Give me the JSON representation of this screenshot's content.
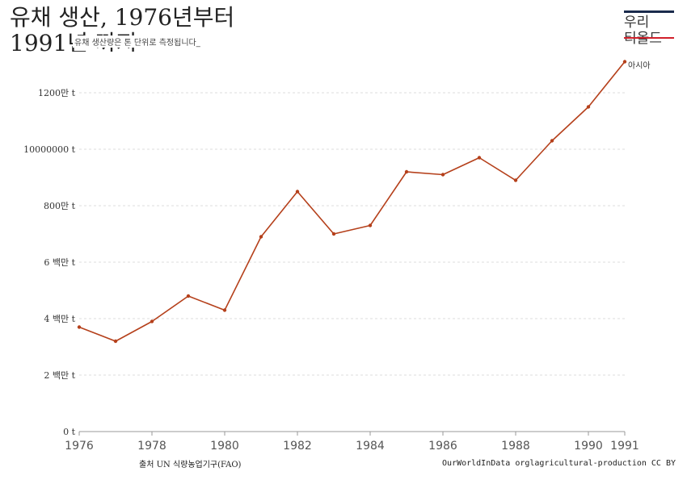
{
  "header": {
    "title": "유채 생산, 1976년부터",
    "title_cont": "1991년 까지",
    "subtitle": "유채 생산량은 톤 단위로 측정됩니다_"
  },
  "logo": {
    "text": "우리\n티올드",
    "bar_color": "#1a2b4c",
    "line_color": "#d11f2a"
  },
  "footer": {
    "source": "출처 UN 식량농업기구(FAO)",
    "attribution": "OurWorldInData orglagricultural-production CC BY"
  },
  "chart_data": {
    "type": "line",
    "x": [
      1976,
      1977,
      1978,
      1979,
      1980,
      1981,
      1982,
      1983,
      1984,
      1985,
      1986,
      1987,
      1988,
      1989,
      1990,
      1991
    ],
    "series": [
      {
        "name": "아시아",
        "color": "#b5401b",
        "values": [
          3700000,
          3200000,
          3900000,
          4800000,
          4300000,
          6900000,
          8500000,
          7000000,
          7300000,
          9200000,
          9100000,
          9700000,
          8900000,
          10300000,
          11500000,
          13100000
        ]
      }
    ],
    "xlim": [
      1976,
      1991
    ],
    "ylim": [
      0,
      12000000
    ],
    "x_ticks": [
      {
        "value": 1976,
        "label": "1976"
      },
      {
        "value": 1978,
        "label": "1978"
      },
      {
        "value": 1980,
        "label": "1980"
      },
      {
        "value": 1982,
        "label": "1982"
      },
      {
        "value": 1984,
        "label": "1984"
      },
      {
        "value": 1986,
        "label": "1986"
      },
      {
        "value": 1988,
        "label": "1988"
      },
      {
        "value": 1990,
        "label": "1990"
      },
      {
        "value": 1991,
        "label": "1991"
      }
    ],
    "y_ticks": [
      {
        "value": 0,
        "label": "0 t"
      },
      {
        "value": 2000000,
        "label": "2 백만 t"
      },
      {
        "value": 4000000,
        "label": "4 백만 t"
      },
      {
        "value": 6000000,
        "label": "6 백만 t"
      },
      {
        "value": 8000000,
        "label": "800만 t"
      },
      {
        "value": 10000000,
        "label": "10000000 t"
      },
      {
        "value": 12000000,
        "label": "1200만 t"
      }
    ],
    "grid": true
  }
}
